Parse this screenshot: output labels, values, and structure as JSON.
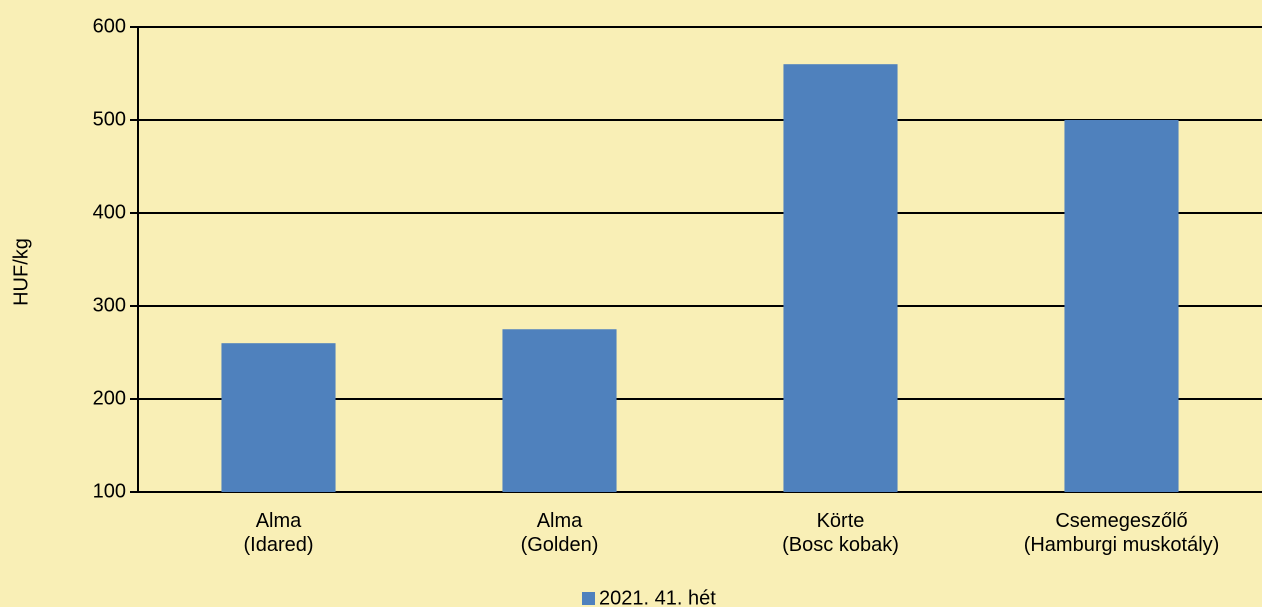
{
  "chart_data": {
    "type": "bar",
    "y_axis_label": "HUF/kg",
    "categories": [
      [
        "Alma",
        "(Idared)"
      ],
      [
        "Alma",
        "(Golden)"
      ],
      [
        "Körte",
        "(Bosc kobak)"
      ],
      [
        "Csemegeszőlő",
        "(Hamburgi muskotály)"
      ]
    ],
    "series": [
      {
        "name": "2021. 41. hét",
        "color": "#4f81bd",
        "values": [
          260,
          275,
          560,
          500
        ]
      }
    ],
    "ylim": [
      100,
      600
    ],
    "yticks": [
      100,
      200,
      300,
      400,
      500,
      600
    ],
    "grid": true,
    "legend": "bottom"
  }
}
